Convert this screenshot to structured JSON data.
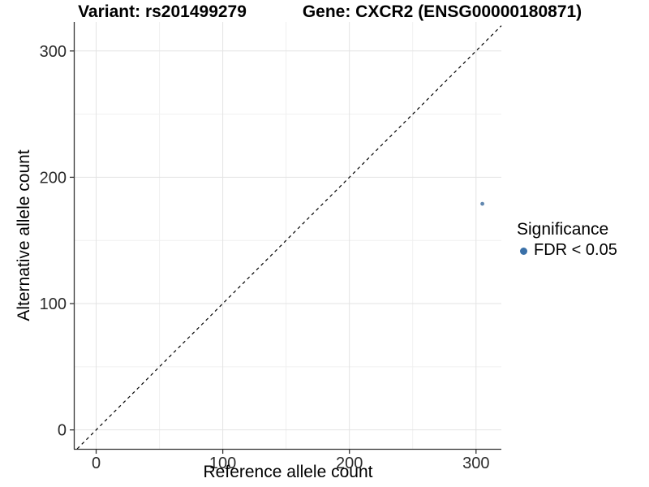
{
  "figure": {
    "title_variant": "Variant: rs201499279",
    "title_gene": "Gene: CXCR2 (ENSG00000180871)"
  },
  "axes": {
    "x_label": "Reference allele count",
    "y_label": "Alternative allele count"
  },
  "legend": {
    "title": "Significance",
    "entries": [
      {
        "label": "FDR < 0.05",
        "color": "#3a70a8"
      }
    ]
  },
  "colors": {
    "background": "#ffffff",
    "axis_line": "#333333",
    "tick_mark": "#333333",
    "tick_label": "#2b2b2b",
    "grid_major": "#e3e3e3",
    "grid_minor": "#f0f0f0",
    "identity_line": "#000000",
    "point": "#6288b0"
  },
  "chart_data": {
    "type": "scatter",
    "title": "Variant: rs201499279 | Gene: CXCR2 (ENSG00000180871)",
    "xlabel": "Reference allele count",
    "ylabel": "Alternative allele count",
    "xlim": [
      -17,
      320
    ],
    "ylim": [
      -15,
      323
    ],
    "x_ticks": [
      0,
      100,
      200,
      300
    ],
    "y_ticks": [
      0,
      100,
      200,
      300
    ],
    "x_minor_ticks": [
      50,
      150,
      250
    ],
    "y_minor_ticks": [
      50,
      150,
      250
    ],
    "grid": true,
    "legend_position": "right",
    "series": [
      {
        "name": "FDR < 0.05",
        "points": [
          [
            305,
            179
          ]
        ],
        "color": "#6288b0",
        "marker_radius": 2.4
      }
    ],
    "reference_line": {
      "type": "identity",
      "equation": "y = x",
      "style": "dashed",
      "color": "#000000"
    }
  }
}
